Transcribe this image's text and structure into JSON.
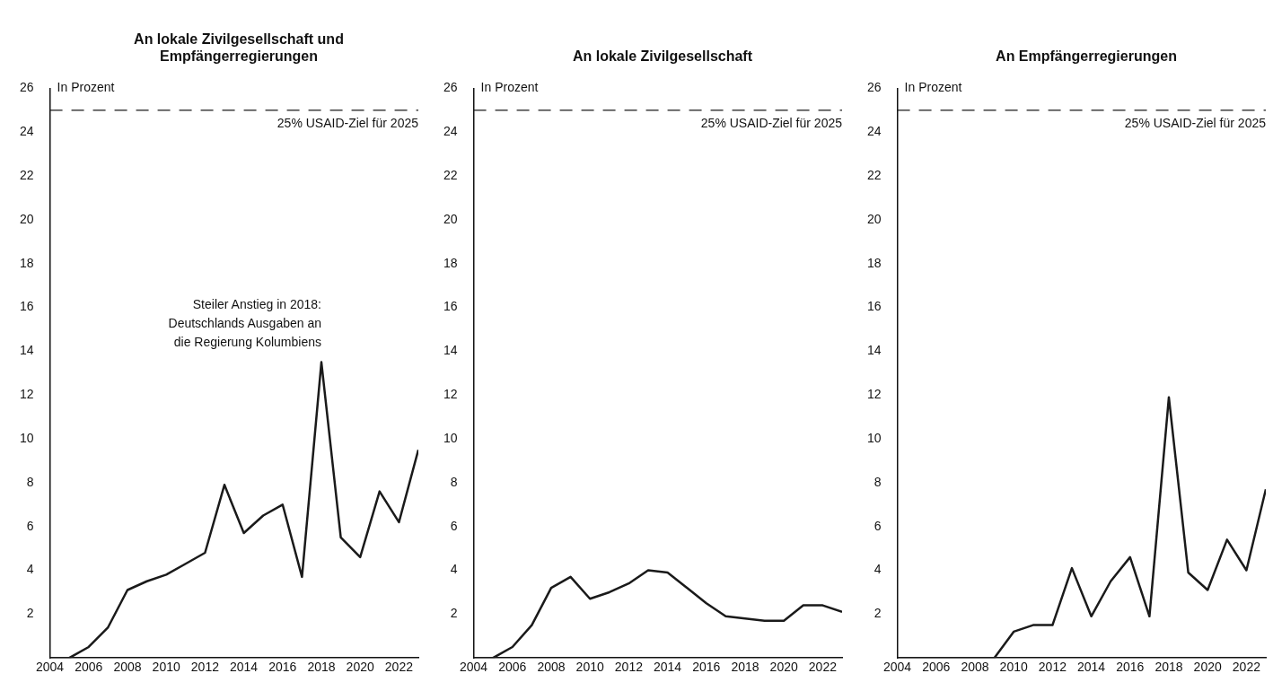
{
  "chart_data": [
    {
      "type": "line",
      "title": "An lokale Zivilgesellschaft und Empfängerregierungen",
      "ylabel": "In Prozent",
      "x": [
        2004,
        2005,
        2006,
        2007,
        2008,
        2009,
        2010,
        2011,
        2012,
        2013,
        2014,
        2015,
        2016,
        2017,
        2018,
        2019,
        2020,
        2021,
        2022,
        2023
      ],
      "series": [
        {
          "color": "#1a1a1a",
          "values": [
            0,
            0,
            0.5,
            1.4,
            3.1,
            3.5,
            3.8,
            4.3,
            4.8,
            7.9,
            5.7,
            6.5,
            7.0,
            3.7,
            13.5,
            5.5,
            4.6,
            7.6,
            6.2,
            9.5
          ]
        }
      ],
      "xlim": [
        2004,
        2023
      ],
      "xticks": [
        2004,
        2006,
        2008,
        2010,
        2012,
        2014,
        2016,
        2018,
        2020,
        2022
      ],
      "ylim": [
        0,
        26
      ],
      "yticks": [
        2,
        4,
        6,
        8,
        10,
        12,
        14,
        16,
        18,
        20,
        22,
        24,
        26
      ],
      "grid": false,
      "legend": false,
      "marker": "none",
      "line_style": "solid",
      "ref_lines": [
        {
          "axis": "y",
          "value": 25,
          "label": "25% USAID-Ziel für 2025",
          "line_style": "dashed",
          "color": "#1a1a1a"
        }
      ],
      "annotations": [
        {
          "text": "Steiler Anstieg in 2018: Deutschlands Ausgaben an die Regierung Kolumbiens",
          "x": 2018,
          "y": 13.5
        }
      ]
    },
    {
      "type": "line",
      "title": "An lokale Zivilgesellschaft",
      "ylabel": "In Prozent",
      "x": [
        2004,
        2005,
        2006,
        2007,
        2008,
        2009,
        2010,
        2011,
        2012,
        2013,
        2014,
        2015,
        2016,
        2017,
        2018,
        2019,
        2020,
        2021,
        2022,
        2023
      ],
      "series": [
        {
          "color": "#1a1a1a",
          "values": [
            0,
            0,
            0.5,
            1.5,
            3.2,
            3.7,
            2.7,
            3.0,
            3.4,
            4.0,
            3.9,
            3.2,
            2.5,
            1.9,
            1.8,
            1.7,
            1.7,
            2.4,
            2.4,
            2.1
          ]
        }
      ],
      "xlim": [
        2004,
        2023
      ],
      "xticks": [
        2004,
        2006,
        2008,
        2010,
        2012,
        2014,
        2016,
        2018,
        2020,
        2022
      ],
      "ylim": [
        0,
        26
      ],
      "yticks": [
        2,
        4,
        6,
        8,
        10,
        12,
        14,
        16,
        18,
        20,
        22,
        24,
        26
      ],
      "grid": false,
      "legend": false,
      "marker": "none",
      "line_style": "solid",
      "ref_lines": [
        {
          "axis": "y",
          "value": 25,
          "label": "25% USAID-Ziel für 2025",
          "line_style": "dashed",
          "color": "#1a1a1a"
        }
      ]
    },
    {
      "type": "line",
      "title": "An Empfängerregierungen",
      "ylabel": "In Prozent",
      "x": [
        2004,
        2005,
        2006,
        2007,
        2008,
        2009,
        2010,
        2011,
        2012,
        2013,
        2014,
        2015,
        2016,
        2017,
        2018,
        2019,
        2020,
        2021,
        2022,
        2023
      ],
      "series": [
        {
          "color": "#1a1a1a",
          "values": [
            0,
            0,
            0,
            0,
            0,
            0,
            1.2,
            1.5,
            1.5,
            4.1,
            1.9,
            3.5,
            4.6,
            1.9,
            11.9,
            3.9,
            3.1,
            5.4,
            4.0,
            7.7
          ]
        }
      ],
      "xlim": [
        2004,
        2023
      ],
      "xticks": [
        2004,
        2006,
        2008,
        2010,
        2012,
        2014,
        2016,
        2018,
        2020,
        2022
      ],
      "ylim": [
        0,
        26
      ],
      "yticks": [
        2,
        4,
        6,
        8,
        10,
        12,
        14,
        16,
        18,
        20,
        22,
        24,
        26
      ],
      "grid": false,
      "legend": false,
      "marker": "none",
      "line_style": "solid",
      "ref_lines": [
        {
          "axis": "y",
          "value": 25,
          "label": "25% USAID-Ziel für 2025",
          "line_style": "dashed",
          "color": "#1a1a1a"
        }
      ]
    }
  ]
}
